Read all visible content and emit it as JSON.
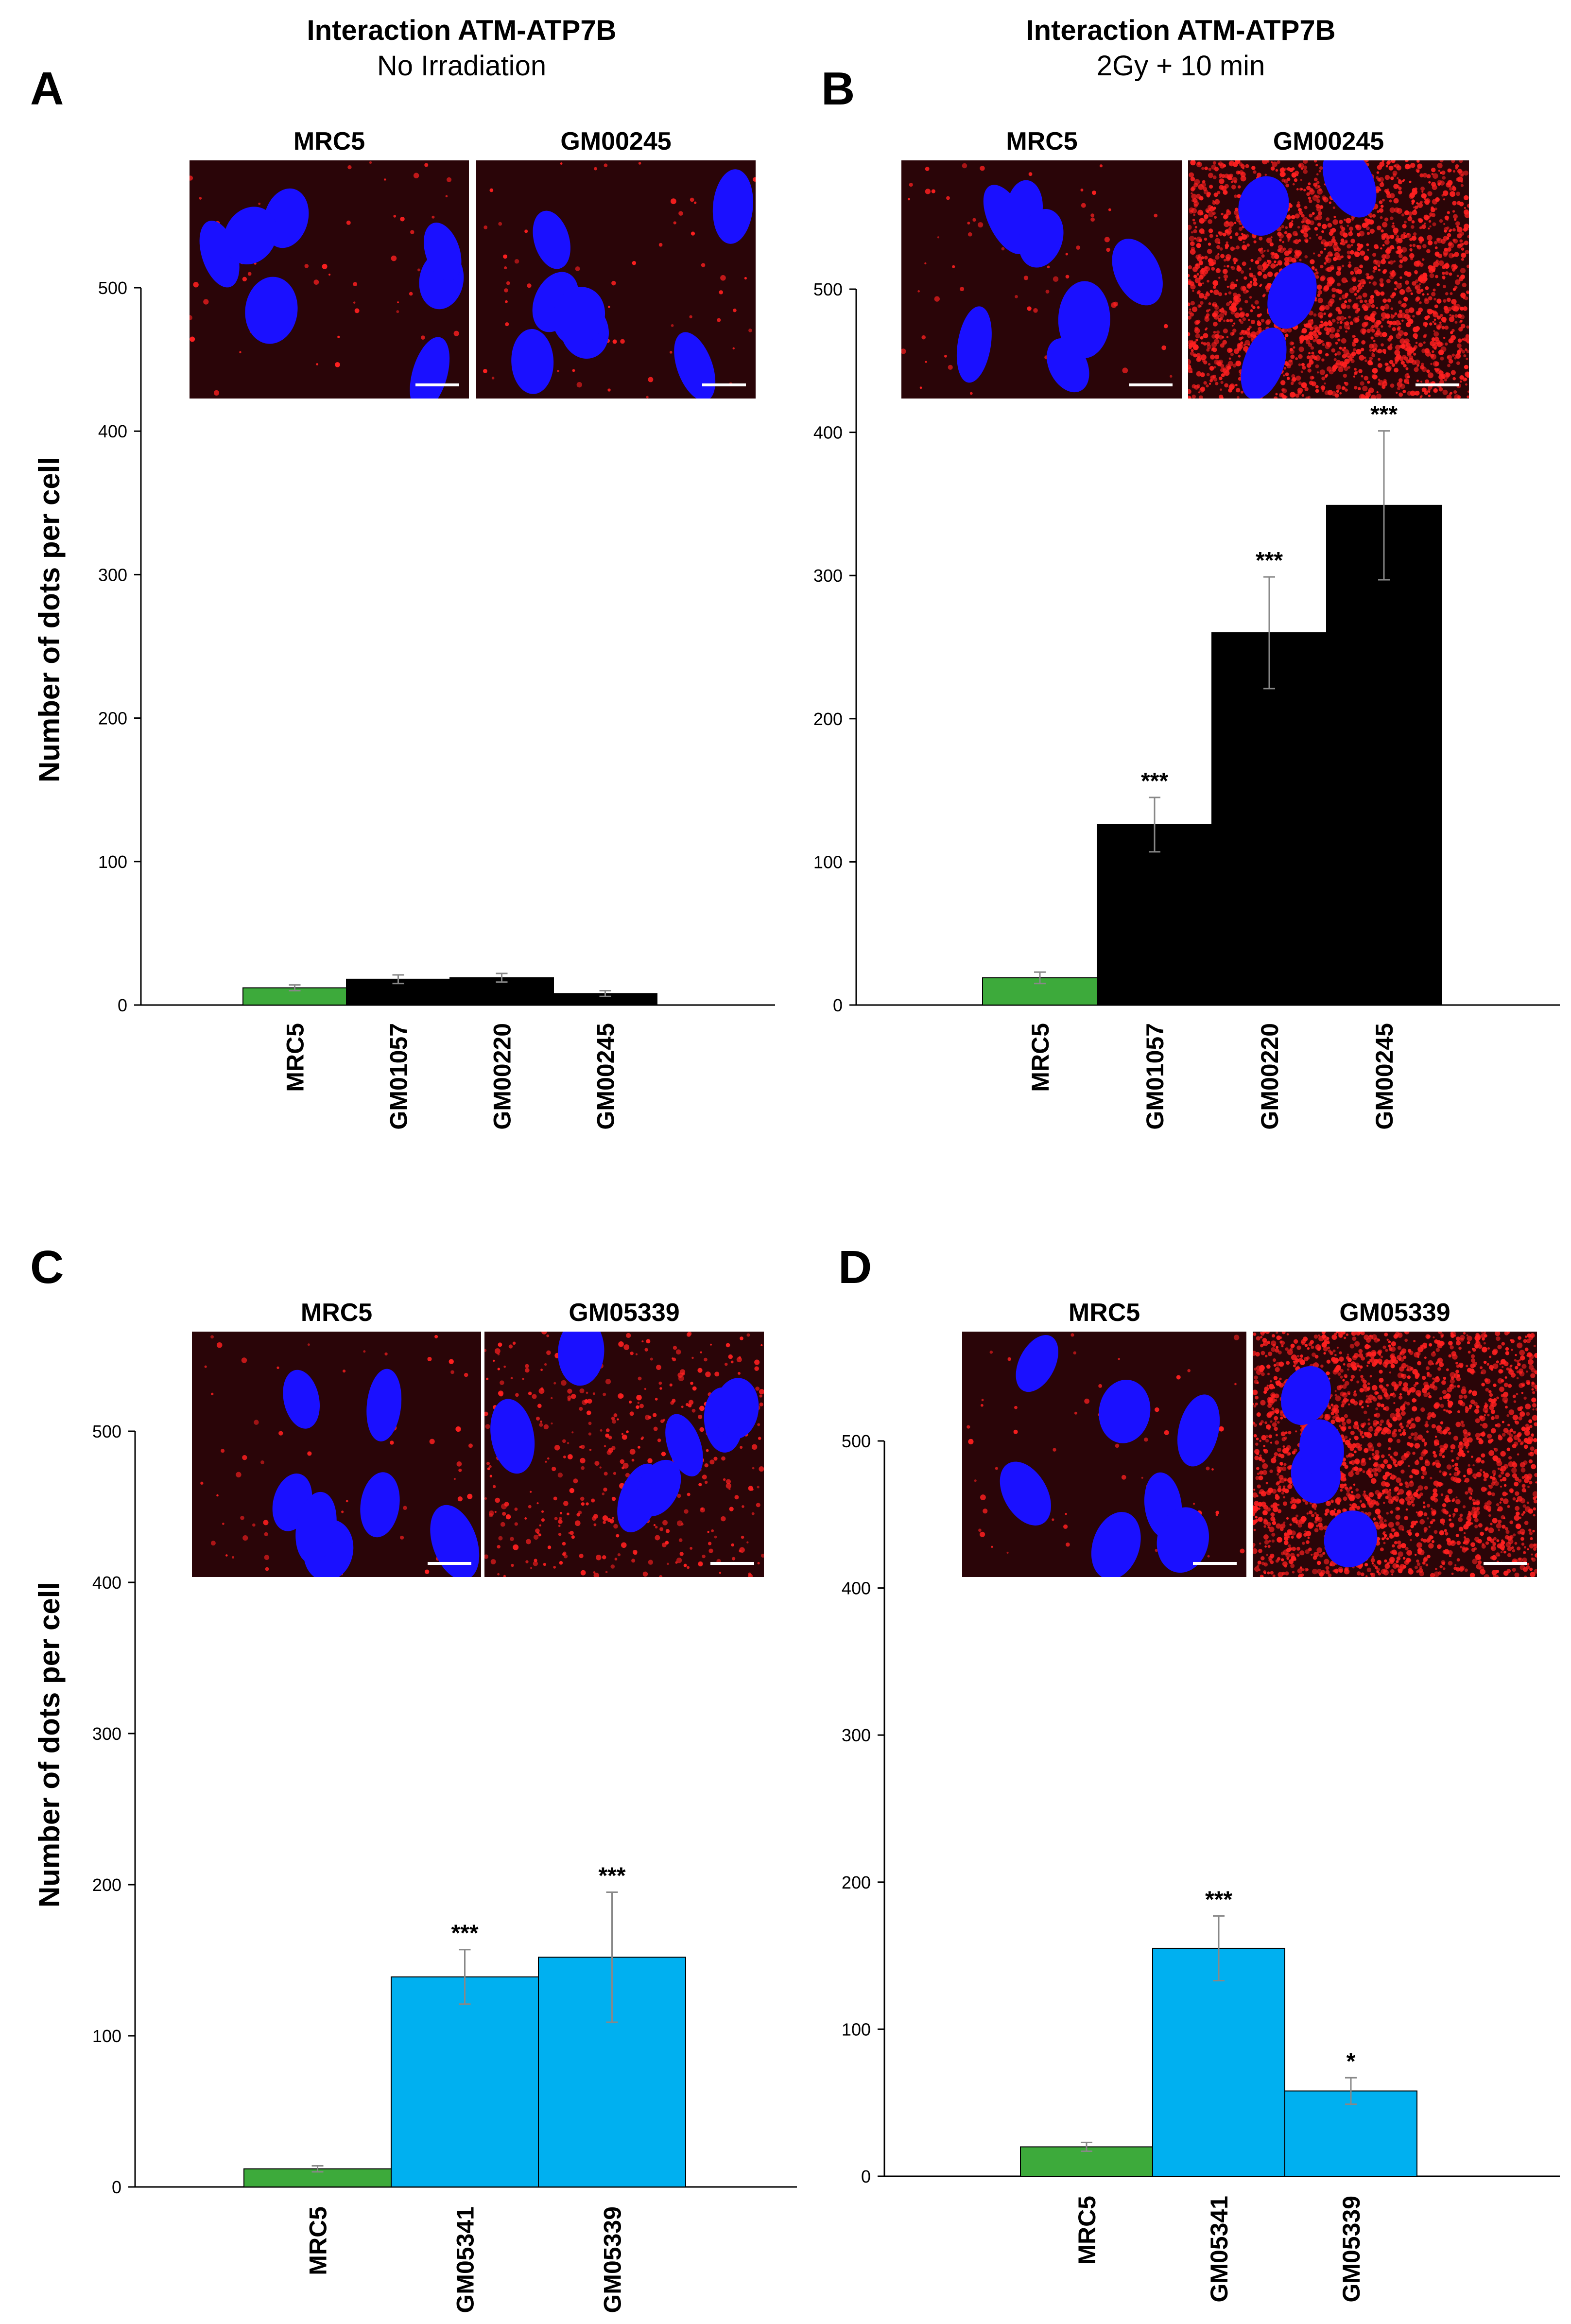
{
  "figure": {
    "titles": {
      "A": {
        "line1": "Interaction ATM-ATP7B",
        "line2": "No Irradiation"
      },
      "B": {
        "line1": "Interaction ATM-ATP7B",
        "line2": "2Gy + 10 min"
      }
    },
    "ylabel": "Number of dots per cell"
  },
  "colors": {
    "control": "#3daa3b",
    "at_cells": "#000000",
    "lines_c": "#00b0f0",
    "cell_bg": "#2a0508",
    "nucleus": "#1a10ff",
    "dots": "#ff2020"
  },
  "panels": [
    {
      "letter": "A",
      "insets": [
        {
          "label": "MRC5",
          "dots": "sparse"
        },
        {
          "label": "GM00245",
          "dots": "sparse"
        }
      ]
    },
    {
      "letter": "B",
      "insets": [
        {
          "label": "MRC5",
          "dots": "sparse"
        },
        {
          "label": "GM00245",
          "dots": "dense"
        }
      ]
    },
    {
      "letter": "C",
      "insets": [
        {
          "label": "MRC5",
          "dots": "sparse"
        },
        {
          "label": "GM05339",
          "dots": "medium"
        }
      ]
    },
    {
      "letter": "D",
      "insets": [
        {
          "label": "MRC5",
          "dots": "sparse"
        },
        {
          "label": "GM05339",
          "dots": "dense"
        }
      ]
    }
  ],
  "chart_data": [
    {
      "panel": "A",
      "type": "bar",
      "categories": [
        "MRC5",
        "GM01057",
        "GM00220",
        "GM00245"
      ],
      "values": [
        12,
        18,
        19,
        8
      ],
      "errors": [
        2,
        3,
        3,
        2
      ],
      "significance": [
        "",
        "",
        "",
        ""
      ],
      "bar_colors": [
        "control",
        "at_cells",
        "at_cells",
        "at_cells"
      ],
      "yticks": [
        0,
        100,
        200,
        300,
        400,
        500
      ],
      "ylim": [
        0,
        500
      ],
      "ylabel": "Number of dots per cell"
    },
    {
      "panel": "B",
      "type": "bar",
      "categories": [
        "MRC5",
        "GM01057",
        "GM00220",
        "GM00245"
      ],
      "values": [
        19,
        126,
        260,
        349
      ],
      "errors": [
        4,
        19,
        39,
        52
      ],
      "significance": [
        "",
        "***",
        "***",
        "***"
      ],
      "bar_colors": [
        "control",
        "at_cells",
        "at_cells",
        "at_cells"
      ],
      "yticks": [
        0,
        100,
        200,
        300,
        400,
        500
      ],
      "ylim": [
        0,
        500
      ],
      "ylabel": ""
    },
    {
      "panel": "C",
      "type": "bar",
      "categories": [
        "MRC5",
        "GM05341",
        "GM05339"
      ],
      "values": [
        12,
        139,
        152
      ],
      "errors": [
        2,
        18,
        43
      ],
      "significance": [
        "",
        "***",
        "***"
      ],
      "bar_colors": [
        "control",
        "lines_c",
        "lines_c"
      ],
      "yticks": [
        0,
        100,
        200,
        300,
        400,
        500
      ],
      "ylim": [
        0,
        500
      ],
      "ylabel": "Number of dots per cell"
    },
    {
      "panel": "D",
      "type": "bar",
      "categories": [
        "MRC5",
        "GM05341",
        "GM05339"
      ],
      "values": [
        20,
        155,
        58
      ],
      "errors": [
        3,
        22,
        9
      ],
      "significance": [
        "",
        "***",
        "*"
      ],
      "bar_colors": [
        "control",
        "lines_c",
        "lines_c"
      ],
      "yticks": [
        0,
        100,
        200,
        300,
        400,
        500
      ],
      "ylim": [
        0,
        500
      ],
      "ylabel": ""
    }
  ]
}
